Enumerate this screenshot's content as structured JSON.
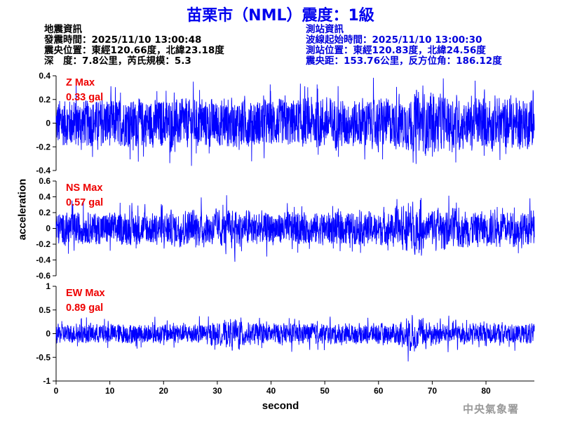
{
  "header": {
    "title": "苗栗市（NML）震度：1級"
  },
  "quake_info": {
    "heading": "地震資訊",
    "origin_time": "發震時間：2025/11/10 13:00:48",
    "epicenter": "震央位置：東經120.66度，北緯23.18度",
    "depth_magnitude": "深　度：7.8公里，芮氏規模：5.3"
  },
  "station_info": {
    "heading": "測站資訊",
    "wave_start": "波線起始時間：2025/11/10 13:00:30",
    "location": "測站位置：東經120.83度，北緯24.56度",
    "distance": "震央距：153.76公里，反方位角：186.12度"
  },
  "footer": {
    "agency": "中央氣象署"
  },
  "colors": {
    "trace": "#0000ff",
    "max_label": "#ee0000",
    "title": "#0000ee"
  },
  "chart_data": {
    "type": "line",
    "xlabel": "second",
    "ylabel": "acceleration",
    "xlim": [
      0,
      89
    ],
    "x_ticks": [
      0,
      10,
      20,
      30,
      40,
      50,
      60,
      70,
      80
    ],
    "grid": false,
    "panels": [
      {
        "component": "Z",
        "max_label": "Z Max",
        "max_value": "0.33 gal",
        "ylim": [
          -0.4,
          0.4
        ],
        "y_ticks": [
          -0.4,
          -0.2,
          0,
          0.2,
          0.4
        ],
        "envelope": [
          {
            "t": 0,
            "amp": 0.03
          },
          {
            "t": 8,
            "amp": 0.04
          },
          {
            "t": 15,
            "amp": 0.05
          },
          {
            "t": 25,
            "amp": 0.06
          },
          {
            "t": 33,
            "amp": 0.08
          },
          {
            "t": 34,
            "amp": 0.25
          },
          {
            "t": 35,
            "amp": 0.07
          },
          {
            "t": 43,
            "amp": 0.05
          },
          {
            "t": 48,
            "amp": 0.12
          },
          {
            "t": 55,
            "amp": 0.12
          },
          {
            "t": 60,
            "amp": 0.1
          },
          {
            "t": 64,
            "amp": 0.16
          },
          {
            "t": 69,
            "amp": 0.3
          },
          {
            "t": 75,
            "amp": 0.2
          },
          {
            "t": 82,
            "amp": 0.17
          },
          {
            "t": 89,
            "amp": 0.1
          }
        ]
      },
      {
        "component": "NS",
        "max_label": "NS Max",
        "max_value": "0.57 gal",
        "ylim": [
          -0.6,
          0.6
        ],
        "y_ticks": [
          -0.6,
          -0.4,
          -0.2,
          0,
          0.2,
          0.4,
          0.6
        ],
        "envelope": [
          {
            "t": 0,
            "amp": 0.04
          },
          {
            "t": 10,
            "amp": 0.05
          },
          {
            "t": 18,
            "amp": 0.1
          },
          {
            "t": 26,
            "amp": 0.22
          },
          {
            "t": 30,
            "amp": 0.26
          },
          {
            "t": 34,
            "amp": 0.3
          },
          {
            "t": 38,
            "amp": 0.12
          },
          {
            "t": 45,
            "amp": 0.06
          },
          {
            "t": 55,
            "amp": 0.07
          },
          {
            "t": 62,
            "amp": 0.1
          },
          {
            "t": 65,
            "amp": 0.5
          },
          {
            "t": 67,
            "amp": 0.5
          },
          {
            "t": 72,
            "amp": 0.3
          },
          {
            "t": 80,
            "amp": 0.2
          },
          {
            "t": 89,
            "amp": 0.16
          }
        ]
      },
      {
        "component": "EW",
        "max_label": "EW Max",
        "max_value": "0.89 gal",
        "ylim": [
          -1,
          1
        ],
        "y_ticks": [
          -1,
          -0.5,
          0,
          0.5,
          1
        ],
        "envelope": [
          {
            "t": 0,
            "amp": 0.05
          },
          {
            "t": 10,
            "amp": 0.07
          },
          {
            "t": 20,
            "amp": 0.1
          },
          {
            "t": 30,
            "amp": 0.18
          },
          {
            "t": 34,
            "amp": 0.55
          },
          {
            "t": 36,
            "amp": 0.2
          },
          {
            "t": 42,
            "amp": 0.15
          },
          {
            "t": 50,
            "amp": 0.14
          },
          {
            "t": 60,
            "amp": 0.12
          },
          {
            "t": 64,
            "amp": 0.2
          },
          {
            "t": 65.5,
            "amp": 0.85
          },
          {
            "t": 68,
            "amp": 0.5
          },
          {
            "t": 72,
            "amp": 0.3
          },
          {
            "t": 80,
            "amp": 0.22
          },
          {
            "t": 89,
            "amp": 0.16
          }
        ]
      }
    ]
  }
}
